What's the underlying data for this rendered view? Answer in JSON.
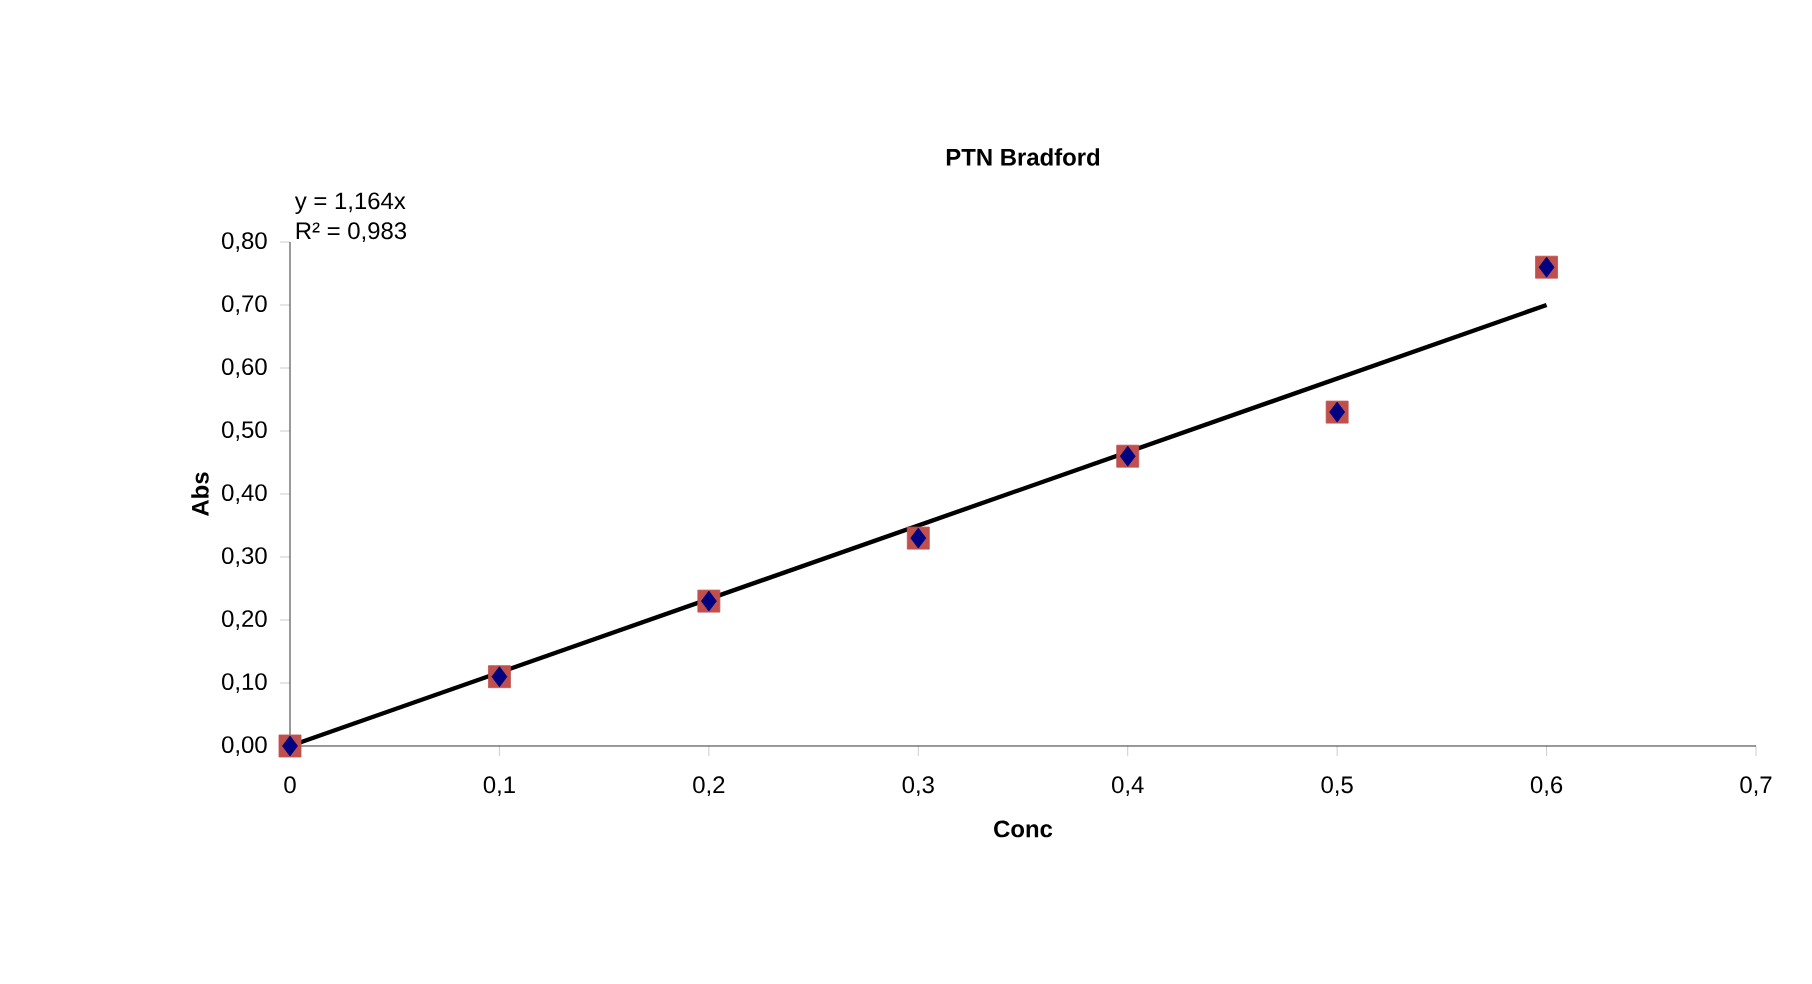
{
  "chart_data": {
    "type": "scatter",
    "title": "PTN Bradford",
    "xlabel": "Conc",
    "ylabel": "Abs",
    "x": [
      0,
      0.1,
      0.2,
      0.3,
      0.4,
      0.5,
      0.6
    ],
    "series": [
      {
        "marker": "square",
        "color": "#c0504d",
        "values": [
          0,
          0.11,
          0.23,
          0.33,
          0.46,
          0.53,
          0.76
        ]
      },
      {
        "marker": "diamond",
        "color": "#000080",
        "values": [
          0,
          0.11,
          0.23,
          0.33,
          0.46,
          0.53,
          0.76
        ]
      },
      {
        "type": "line",
        "marker": "none",
        "color": "#000000",
        "x": [
          0,
          0.6
        ],
        "values": [
          0,
          0.7
        ]
      }
    ],
    "annotations": [
      "y = 1,164x",
      "R² = 0,983"
    ],
    "xlim": [
      0,
      0.7
    ],
    "xticks": [
      0,
      {
        "value": 0.1,
        "label": "0,1"
      },
      {
        "value": 0.2,
        "label": "0,2"
      },
      {
        "value": 0.3,
        "label": "0,3"
      },
      {
        "value": 0.4,
        "label": "0,4"
      },
      {
        "value": 0.5,
        "label": "0,5"
      },
      {
        "value": 0.6,
        "label": "0,6"
      },
      {
        "value": 0.7,
        "label": "0,7"
      }
    ],
    "ylim": [
      0,
      0.8
    ],
    "yticks": [
      {
        "value": 0,
        "label": "0,00"
      },
      {
        "value": 0.1,
        "label": "0,10"
      },
      {
        "value": 0.2,
        "label": "0,20"
      },
      {
        "value": 0.3,
        "label": "0,30"
      },
      {
        "value": 0.4,
        "label": "0,40"
      },
      {
        "value": 0.5,
        "label": "0,50"
      },
      {
        "value": 0.6,
        "label": "0,60"
      },
      {
        "value": 0.7,
        "label": "0,70"
      },
      {
        "value": 0.8,
        "label": "0,80"
      }
    ],
    "grid": false
  }
}
